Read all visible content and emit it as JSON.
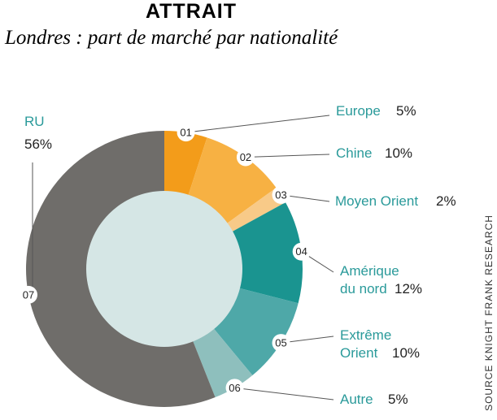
{
  "chart_data": {
    "type": "pie",
    "donut": true,
    "title": "ATTRAIT",
    "subtitle": "Londres : part de marché par nationalité",
    "source": "SOURCE KNIGHT FRANK RESEARCH",
    "categories": [
      "Europe",
      "Chine",
      "Moyen Orient",
      "Amérique du nord",
      "Extrême Orient",
      "Autre",
      "RU"
    ],
    "markers": [
      "01",
      "02",
      "03",
      "04",
      "05",
      "06",
      "07"
    ],
    "values": [
      5,
      10,
      2,
      12,
      10,
      5,
      56
    ],
    "value_labels": [
      "5%",
      "10%",
      "2%",
      "12%",
      "10%",
      "5%",
      "56%"
    ],
    "colors": [
      "#f39c1a",
      "#f7b143",
      "#f8ca88",
      "#1a9490",
      "#4ea8a8",
      "#8ebfbd",
      "#6f6d6a"
    ]
  }
}
